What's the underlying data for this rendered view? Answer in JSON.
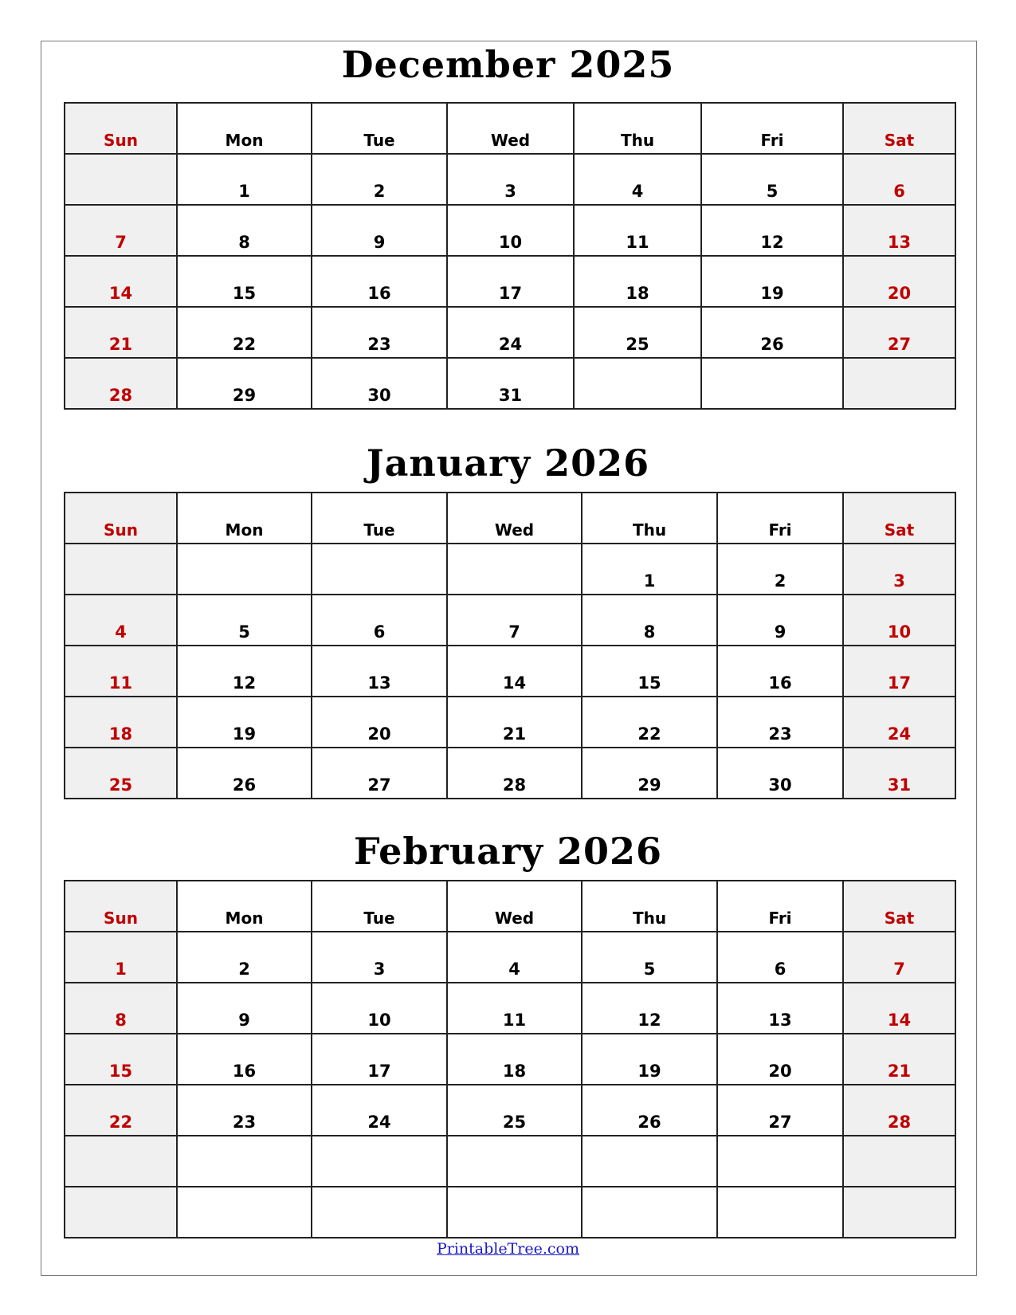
{
  "weekdays": [
    "Sun",
    "Mon",
    "Tue",
    "Wed",
    "Thu",
    "Fri",
    "Sat"
  ],
  "colors": {
    "weekend_text": "#c00000",
    "weekend_bg": "#f0f0f0",
    "link": "#1a1acc"
  },
  "months": [
    {
      "title": "December 2025",
      "weeks": [
        [
          "",
          "1",
          "2",
          "3",
          "4",
          "5",
          "6"
        ],
        [
          "7",
          "8",
          "9",
          "10",
          "11",
          "12",
          "13"
        ],
        [
          "14",
          "15",
          "16",
          "17",
          "18",
          "19",
          "20"
        ],
        [
          "21",
          "22",
          "23",
          "24",
          "25",
          "26",
          "27"
        ],
        [
          "28",
          "29",
          "30",
          "31",
          "",
          "",
          ""
        ]
      ]
    },
    {
      "title": "January 2026",
      "weeks": [
        [
          "",
          "",
          "",
          "",
          "1",
          "2",
          "3"
        ],
        [
          "4",
          "5",
          "6",
          "7",
          "8",
          "9",
          "10"
        ],
        [
          "11",
          "12",
          "13",
          "14",
          "15",
          "16",
          "17"
        ],
        [
          "18",
          "19",
          "20",
          "21",
          "22",
          "23",
          "24"
        ],
        [
          "25",
          "26",
          "27",
          "28",
          "29",
          "30",
          "31"
        ]
      ]
    },
    {
      "title": "February 2026",
      "weeks": [
        [
          "1",
          "2",
          "3",
          "4",
          "5",
          "6",
          "7"
        ],
        [
          "8",
          "9",
          "10",
          "11",
          "12",
          "13",
          "14"
        ],
        [
          "15",
          "16",
          "17",
          "18",
          "19",
          "20",
          "21"
        ],
        [
          "22",
          "23",
          "24",
          "25",
          "26",
          "27",
          "28"
        ],
        [
          "",
          "",
          "",
          "",
          "",
          "",
          ""
        ],
        [
          "",
          "",
          "",
          "",
          "",
          "",
          ""
        ]
      ]
    }
  ],
  "footer": {
    "link_text": "PrintableTree.com"
  }
}
